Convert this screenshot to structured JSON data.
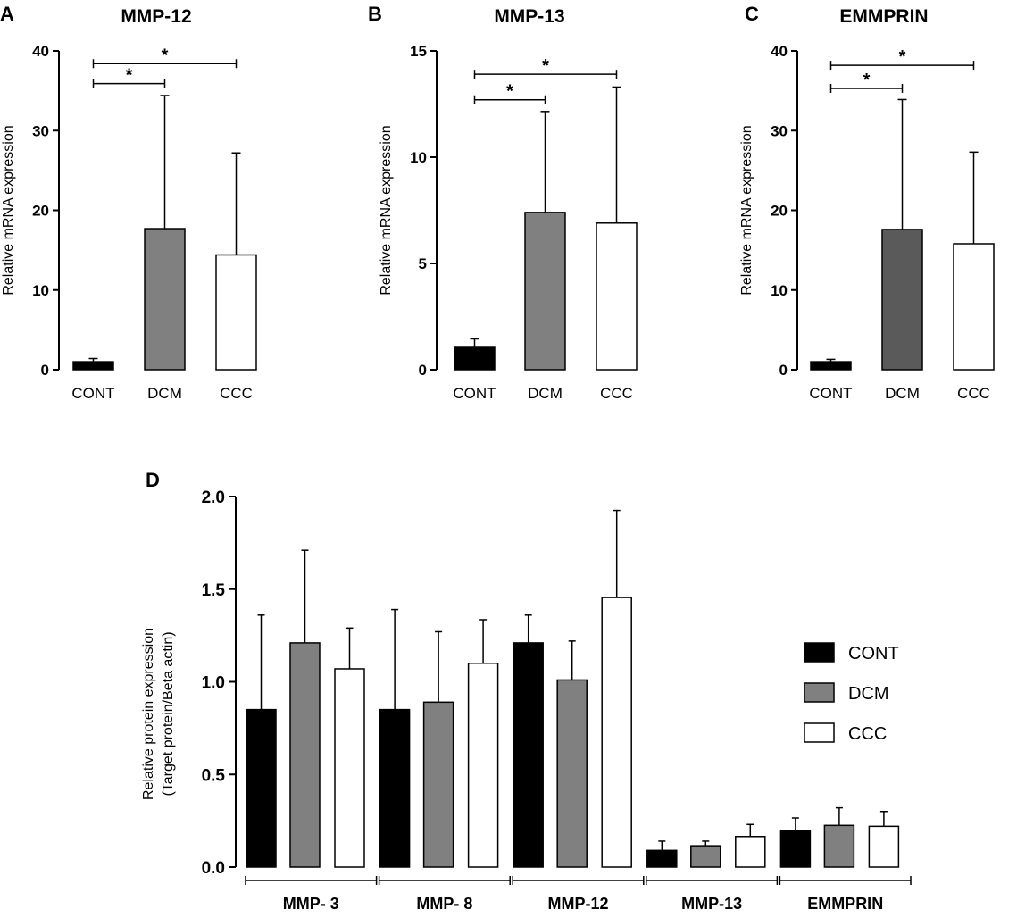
{
  "chart_data": [
    {
      "id": "A",
      "panel_label": "A",
      "type": "bar",
      "title": "MMP-12",
      "ylabel": "Relative mRNA expression",
      "xlabel": "",
      "ylim": [
        0,
        40
      ],
      "yticks": [
        0,
        10,
        20,
        30,
        40
      ],
      "categories": [
        "CONT",
        "DCM",
        "CCC"
      ],
      "values": [
        1.0,
        17.7,
        14.4
      ],
      "errors": [
        0.4,
        16.7,
        12.8
      ],
      "colors": [
        "#000000",
        "#808080",
        "#ffffff"
      ],
      "significance": [
        {
          "from": 0,
          "to": 1,
          "y": 35.9,
          "label": "*"
        },
        {
          "from": 0,
          "to": 2,
          "y": 38.4,
          "label": "*"
        }
      ]
    },
    {
      "id": "B",
      "panel_label": "B",
      "type": "bar",
      "title": "MMP-13",
      "ylabel": "Relative mRNA expression",
      "xlabel": "",
      "ylim": [
        0,
        15
      ],
      "yticks": [
        0,
        5,
        10,
        15
      ],
      "categories": [
        "CONT",
        "DCM",
        "CCC"
      ],
      "values": [
        1.05,
        7.4,
        6.9
      ],
      "errors": [
        0.4,
        4.75,
        6.4
      ],
      "colors": [
        "#000000",
        "#808080",
        "#ffffff"
      ],
      "significance": [
        {
          "from": 0,
          "to": 1,
          "y": 12.7,
          "label": "*"
        },
        {
          "from": 0,
          "to": 2,
          "y": 13.9,
          "label": "*"
        }
      ]
    },
    {
      "id": "C",
      "panel_label": "C",
      "type": "bar",
      "title": "EMMPRIN",
      "ylabel": "Relative mRNA expression",
      "xlabel": "",
      "ylim": [
        0,
        40
      ],
      "yticks": [
        0,
        10,
        20,
        30,
        40
      ],
      "categories": [
        "CONT",
        "DCM",
        "CCC"
      ],
      "values": [
        1.0,
        17.6,
        15.8
      ],
      "errors": [
        0.3,
        16.3,
        11.5
      ],
      "colors": [
        "#000000",
        "#5a5a5a",
        "#ffffff"
      ],
      "significance": [
        {
          "from": 0,
          "to": 1,
          "y": 35.3,
          "label": "*"
        },
        {
          "from": 0,
          "to": 2,
          "y": 38.2,
          "label": "*"
        }
      ]
    },
    {
      "id": "D",
      "panel_label": "D",
      "type": "bar",
      "title": "",
      "ylabel": "Relative protein expression",
      "ylabel2": "(Target protein/Beta actin)",
      "xlabel": "",
      "ylim": [
        0,
        2.0
      ],
      "yticks": [
        "0.0",
        "0.5",
        "1.0",
        "1.5",
        "2.0"
      ],
      "categories": [
        "MMP- 3",
        "MMP- 8",
        "MMP-12",
        "MMP-13",
        "EMMPRIN"
      ],
      "series": [
        {
          "name": "CONT",
          "color": "#000000",
          "values": [
            0.85,
            0.85,
            1.21,
            0.09,
            0.195
          ],
          "errors": [
            0.51,
            0.54,
            0.15,
            0.05,
            0.07
          ]
        },
        {
          "name": "DCM",
          "color": "#808080",
          "values": [
            1.21,
            0.89,
            1.01,
            0.115,
            0.225
          ],
          "errors": [
            0.5,
            0.38,
            0.21,
            0.025,
            0.095
          ]
        },
        {
          "name": "CCC",
          "color": "#ffffff",
          "values": [
            1.07,
            1.1,
            1.455,
            0.165,
            0.22
          ],
          "errors": [
            0.22,
            0.235,
            0.47,
            0.065,
            0.08
          ]
        }
      ],
      "legend": [
        "CONT",
        "DCM",
        "CCC"
      ],
      "legend_position": "right"
    }
  ]
}
